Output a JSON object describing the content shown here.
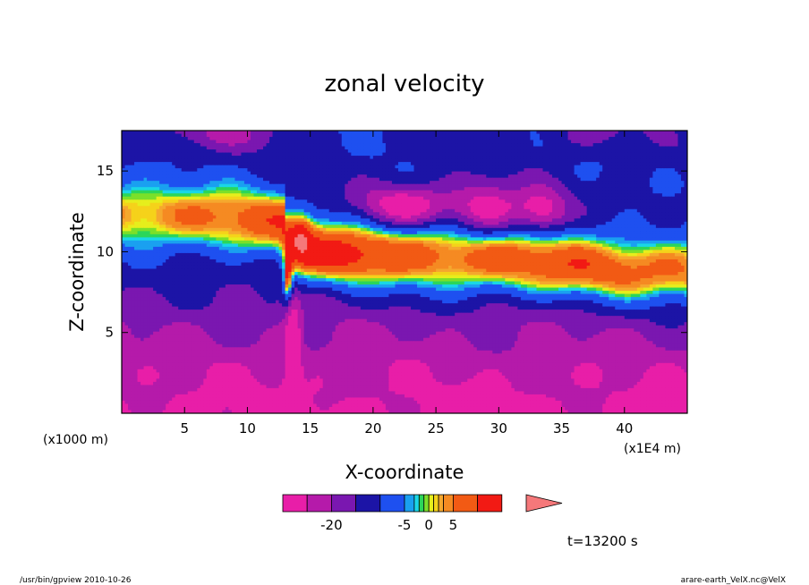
{
  "chart_data": {
    "type": "heatmap",
    "title": "zonal velocity",
    "xlabel": "X-coordinate",
    "ylabel": "Z-coordinate",
    "x_unit_label": "(x1E4 m)",
    "y_unit_label": "(x1000 m)",
    "xlim": [
      0,
      45
    ],
    "ylim": [
      0,
      17.5
    ],
    "x_ticks": [
      5,
      10,
      15,
      20,
      25,
      30,
      35,
      40
    ],
    "y_ticks": [
      5,
      10,
      15
    ],
    "x_tick_labels": [
      "5",
      "10",
      "15",
      "20",
      "25",
      "30",
      "35",
      "40"
    ],
    "y_tick_labels": [
      "5",
      "10",
      "15"
    ],
    "colorbar": {
      "levels": [
        -30,
        -25,
        -20,
        -15,
        -10,
        -5,
        -3,
        -2,
        -1,
        0,
        1,
        2,
        3,
        5,
        10,
        15,
        20
      ],
      "colors": [
        "#e81ea8",
        "#b51aaa",
        "#7a17b0",
        "#1c14a6",
        "#1e50f0",
        "#1aa0f0",
        "#19d7e6",
        "#2bd65a",
        "#7be02a",
        "#e6ee1c",
        "#f5d21a",
        "#f5a82e",
        "#f58a22",
        "#f25a14",
        "#f21a14"
      ],
      "overflow_color": "#f5787a",
      "tick_labels": [
        {
          "text": "-20",
          "value": -20
        },
        {
          "text": "-5",
          "value": -5
        },
        {
          "text": "0",
          "value": 0
        },
        {
          "text": "5",
          "value": 5
        }
      ]
    },
    "features": [
      {
        "region": "surface layer z<4",
        "value": -25
      },
      {
        "region": "mid layer z 4-9",
        "value": -15
      },
      {
        "region": "upper jet z 9-14 downstream of x=14",
        "value": 8
      },
      {
        "region": "upper jet z 10-14 upstream of x=13",
        "value": 5
      },
      {
        "region": "core near x=14, z=11",
        "value": 18
      },
      {
        "region": "eddy near x=28, z=12.5",
        "value": -8
      }
    ]
  },
  "time_label": "t=13200 s",
  "footer": {
    "left": "/usr/bin/gpview   2010-10-26",
    "right": "arare-earth_VelX.nc@VelX"
  }
}
